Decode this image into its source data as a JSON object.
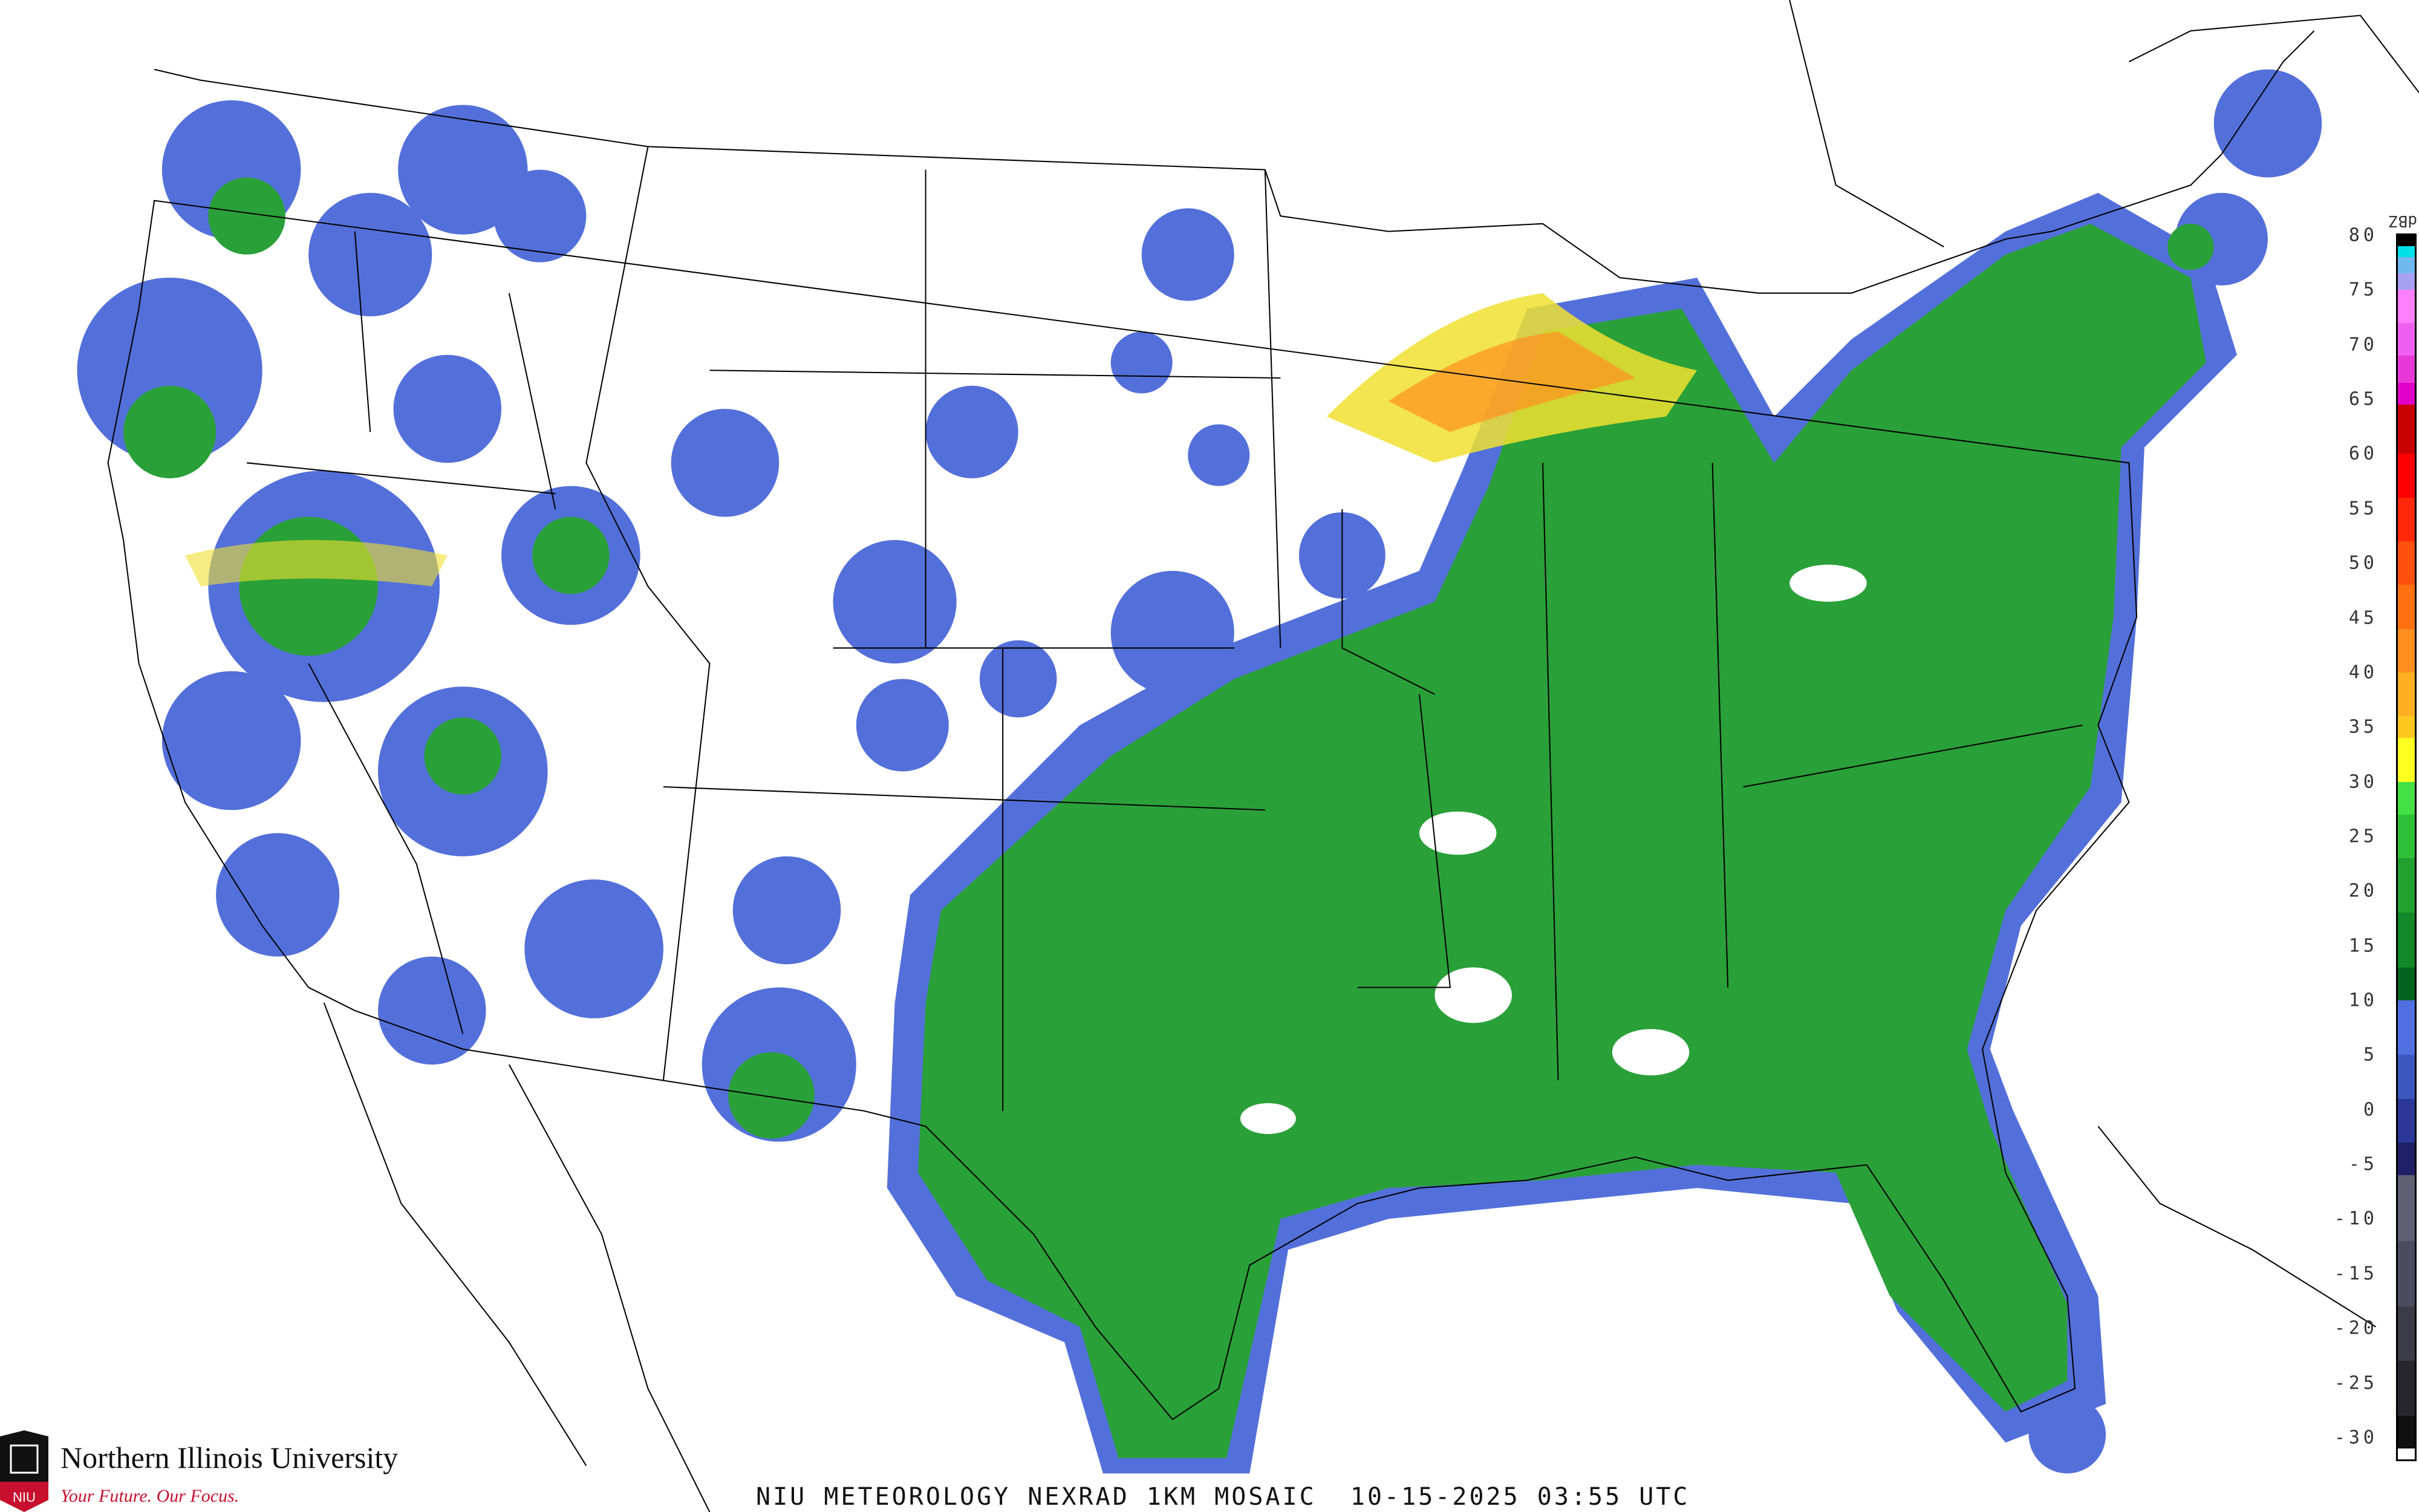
{
  "caption": "NIU METEOROLOGY NEXRAD 1KM MOSAIC  10-15-2025 03:55 UTC",
  "logo": {
    "name": "Northern Illinois University",
    "tagline": "Your Future. Our Focus.",
    "mark": "NIU"
  },
  "legend": {
    "units": "dBZ",
    "labels": [
      "80",
      "75",
      "70",
      "65",
      "60",
      "55",
      "50",
      "45",
      "40",
      "35",
      "30",
      "25",
      "20",
      "15",
      "10",
      "5",
      "0",
      "-5",
      "-10",
      "-15",
      "-20",
      "-25",
      "-30"
    ],
    "scale": [
      {
        "from": 80,
        "to": 79,
        "color": "#000000"
      },
      {
        "from": 79,
        "to": 78,
        "color": "#00e0e8"
      },
      {
        "from": 78,
        "to": 76.5,
        "color": "#70b8f0"
      },
      {
        "from": 76.5,
        "to": 75,
        "color": "#a8a0f0"
      },
      {
        "from": 75,
        "to": 72,
        "color": "#ff80ff"
      },
      {
        "from": 72,
        "to": 69,
        "color": "#f060f0"
      },
      {
        "from": 69,
        "to": 66.5,
        "color": "#e838d8"
      },
      {
        "from": 66.5,
        "to": 64.5,
        "color": "#e000c8"
      },
      {
        "from": 64.5,
        "to": 60,
        "color": "#c80000"
      },
      {
        "from": 60,
        "to": 56,
        "color": "#ff0000"
      },
      {
        "from": 56,
        "to": 52,
        "color": "#ff2808"
      },
      {
        "from": 52,
        "to": 48,
        "color": "#ff5010"
      },
      {
        "from": 48,
        "to": 44,
        "color": "#ff7010"
      },
      {
        "from": 44,
        "to": 40,
        "color": "#ff9020"
      },
      {
        "from": 40,
        "to": 36,
        "color": "#ffb020"
      },
      {
        "from": 36,
        "to": 34,
        "color": "#ffc820"
      },
      {
        "from": 34,
        "to": 30,
        "color": "#ffff20"
      },
      {
        "from": 30,
        "to": 27,
        "color": "#44e044"
      },
      {
        "from": 27,
        "to": 23,
        "color": "#30c038"
      },
      {
        "from": 23,
        "to": 18,
        "color": "#22a030"
      },
      {
        "from": 18,
        "to": 13,
        "color": "#128828"
      },
      {
        "from": 13,
        "to": 10,
        "color": "#006420"
      },
      {
        "from": 10,
        "to": 5,
        "color": "#5070e0"
      },
      {
        "from": 5,
        "to": 1,
        "color": "#3c58c0"
      },
      {
        "from": 1,
        "to": -3,
        "color": "#2c3898"
      },
      {
        "from": -3,
        "to": -6,
        "color": "#202068"
      },
      {
        "from": -6,
        "to": -12,
        "color": "#606074"
      },
      {
        "from": -12,
        "to": -18,
        "color": "#4c4c60"
      },
      {
        "from": -18,
        "to": -23,
        "color": "#3c3c48"
      },
      {
        "from": -23,
        "to": -28,
        "color": "#26262c"
      },
      {
        "from": -28,
        "to": -31,
        "color": "#101010"
      },
      {
        "from": -31,
        "to": -32,
        "color": "#ffffff"
      }
    ]
  },
  "colors": {
    "light_precip": "#4a68d8",
    "moderate_precip": "#2aa038",
    "heavy_precip": "#ffd020",
    "outline": "#000000",
    "county_lines": "#bfbfbf",
    "highways": "#a0522d"
  }
}
